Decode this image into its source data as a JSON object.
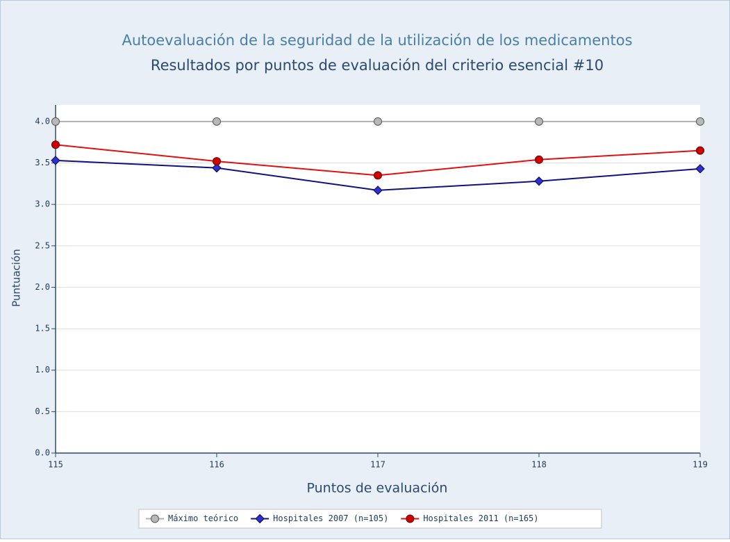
{
  "chart_data": {
    "type": "line",
    "title": "Autoevaluación de la seguridad de la utilización de los medicamentos",
    "subtitle": "Resultados por puntos de evaluación del criterio esencial #10",
    "x_label": "Puntos de evaluación",
    "y_label": "Puntuación",
    "x": [
      115,
      116,
      117,
      118,
      119
    ],
    "xlim": [
      115,
      119
    ],
    "xticks": [
      115,
      116,
      117,
      118,
      119
    ],
    "ylim": [
      0,
      4.2
    ],
    "yticks": [
      {
        "value": 0,
        "label": "0.0"
      },
      {
        "value": 0.5,
        "label": "0.5"
      },
      {
        "value": 1,
        "label": "1.0"
      },
      {
        "value": 1.5,
        "label": "1.5"
      },
      {
        "value": 2,
        "label": "2.0"
      },
      {
        "value": 2.5,
        "label": "2.5"
      },
      {
        "value": 3,
        "label": "3.0"
      },
      {
        "value": 3.5,
        "label": "3.5"
      },
      {
        "value": 4,
        "label": "4.0"
      }
    ],
    "grid": true,
    "legend": "bottom",
    "series": [
      {
        "name": "Máximo teórico",
        "color": "#b0b0b0",
        "marker": "circle",
        "marker_color": "#b8b8b8",
        "values": [
          4,
          4,
          4,
          4,
          4
        ]
      },
      {
        "name": "Hospitales 2007 (n=105)",
        "color": "#101080",
        "marker": "diamond",
        "marker_color": "#3030d0",
        "values": [
          3.53,
          3.44,
          3.17,
          3.28,
          3.43
        ]
      },
      {
        "name": "Hospitales 2011 (n=165)",
        "color": "#e01010",
        "marker": "circle",
        "marker_color": "#d00000",
        "values": [
          3.72,
          3.52,
          3.35,
          3.54,
          3.65
        ]
      }
    ]
  }
}
